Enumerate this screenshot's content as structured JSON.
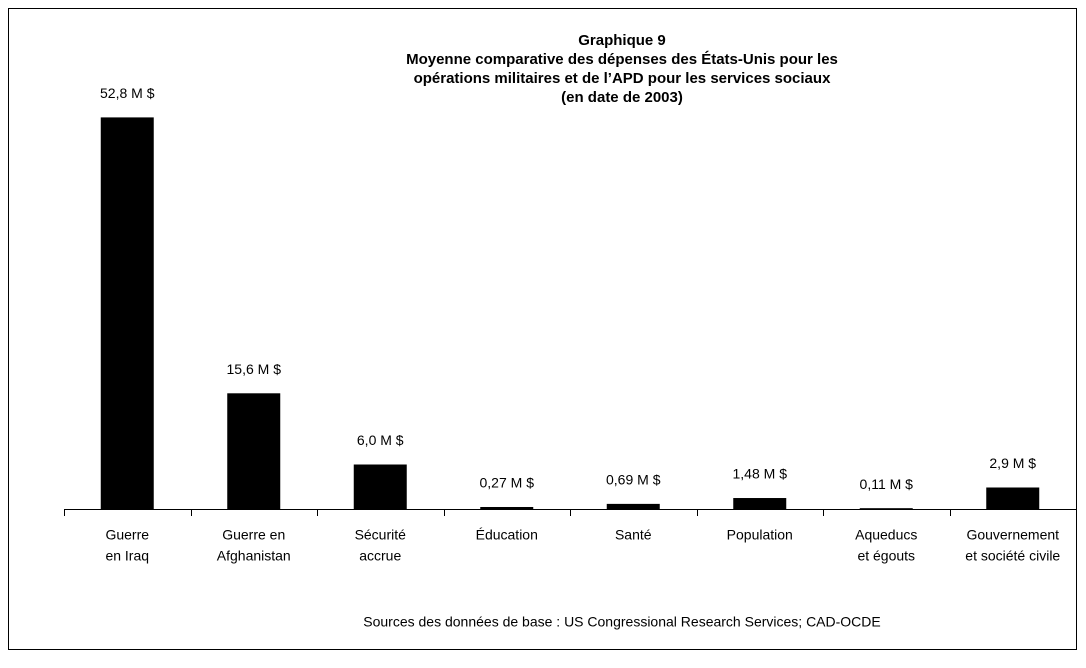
{
  "chart_data": {
    "type": "bar",
    "title": [
      "Graphique 9",
      "Moyenne comparative des dépenses des États-Unis pour les",
      "opérations militaires et de l’APD pour les services sociaux",
      "(en date de 2003)"
    ],
    "categories": [
      [
        "Guerre",
        "en Iraq"
      ],
      [
        "Guerre en",
        "Afghanistan"
      ],
      [
        "Sécurité",
        "accrue"
      ],
      [
        "Éducation"
      ],
      [
        "Santé"
      ],
      [
        "Population"
      ],
      [
        "Aqueducs",
        "et égouts"
      ],
      [
        "Gouvernement",
        "et société civile"
      ]
    ],
    "values": [
      52.8,
      15.6,
      6.0,
      0.27,
      0.69,
      1.48,
      0.11,
      2.9
    ],
    "value_labels": [
      "52,8 M $",
      "15,6 M $",
      "6,0 M $",
      "0,27 M $",
      "0,69 M $",
      "1,48 M $",
      "0,11 M $",
      "2,9 M $"
    ],
    "color": "#000000",
    "ylim": [
      0,
      60
    ],
    "source": "Sources des données de base : US Congressional Research Services; CAD-OCDE"
  }
}
